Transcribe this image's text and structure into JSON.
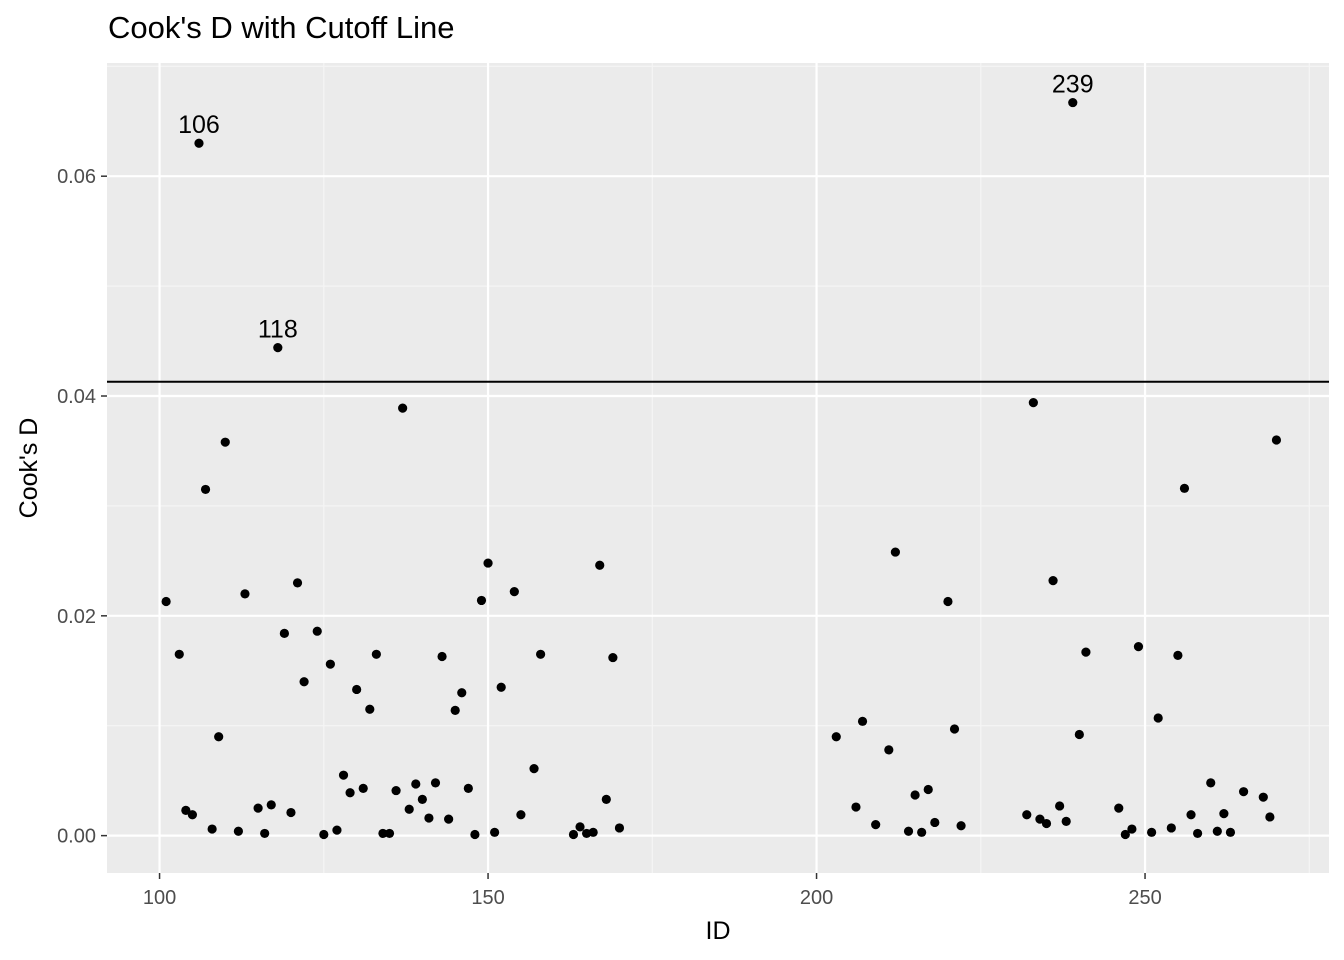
{
  "chart_data": {
    "type": "scatter",
    "title": "Cook's D with Cutoff Line",
    "xlabel": "ID",
    "ylabel": "Cook's D",
    "xlim": [
      92,
      278
    ],
    "ylim": [
      -0.0034,
      0.0703
    ],
    "x_ticks": [
      100,
      150,
      200,
      250
    ],
    "y_ticks": [
      0.0,
      0.02,
      0.04,
      0.06
    ],
    "x_tick_labels": [
      "100",
      "150",
      "200",
      "250"
    ],
    "y_tick_labels": [
      "0.00",
      "0.02",
      "0.04",
      "0.06"
    ],
    "grid": true,
    "cutoff": 0.0413,
    "colors": {
      "panel": "#ebebeb",
      "grid_major": "#ffffff",
      "grid_minor": "#f5f5f5",
      "point": "#000000",
      "line": "#000000"
    },
    "points": [
      [
        101,
        0.0213
      ],
      [
        103,
        0.0165
      ],
      [
        104,
        0.0023
      ],
      [
        105,
        0.0019
      ],
      [
        106,
        0.063
      ],
      [
        107,
        0.0315
      ],
      [
        108,
        0.0006
      ],
      [
        109,
        0.009
      ],
      [
        110,
        0.0358
      ],
      [
        112,
        0.0004
      ],
      [
        113,
        0.022
      ],
      [
        115,
        0.0025
      ],
      [
        116,
        0.0002
      ],
      [
        117,
        0.0028
      ],
      [
        118,
        0.0444
      ],
      [
        119,
        0.0184
      ],
      [
        120,
        0.0021
      ],
      [
        121,
        0.023
      ],
      [
        122,
        0.014
      ],
      [
        124,
        0.0186
      ],
      [
        125,
        0.0001
      ],
      [
        126,
        0.0156
      ],
      [
        127,
        0.0005
      ],
      [
        128,
        0.0055
      ],
      [
        129,
        0.0039
      ],
      [
        130,
        0.0133
      ],
      [
        131,
        0.0043
      ],
      [
        132,
        0.0115
      ],
      [
        133,
        0.0165
      ],
      [
        134,
        0.0002
      ],
      [
        135,
        0.0002
      ],
      [
        136,
        0.0041
      ],
      [
        137,
        0.0389
      ],
      [
        138,
        0.0024
      ],
      [
        139,
        0.0047
      ],
      [
        140,
        0.0033
      ],
      [
        141,
        0.0016
      ],
      [
        142,
        0.0048
      ],
      [
        143,
        0.0163
      ],
      [
        144,
        0.0015
      ],
      [
        145,
        0.0114
      ],
      [
        146,
        0.013
      ],
      [
        147,
        0.0043
      ],
      [
        148,
        0.0001
      ],
      [
        149,
        0.0214
      ],
      [
        150,
        0.0248
      ],
      [
        151,
        0.0003
      ],
      [
        152,
        0.0135
      ],
      [
        154,
        0.0222
      ],
      [
        155,
        0.0019
      ],
      [
        157,
        0.0061
      ],
      [
        158,
        0.0165
      ],
      [
        163,
        0.0001
      ],
      [
        164,
        0.0008
      ],
      [
        165,
        0.0002
      ],
      [
        166,
        0.0003
      ],
      [
        167,
        0.0246
      ],
      [
        168,
        0.0033
      ],
      [
        169,
        0.0162
      ],
      [
        170,
        0.0007
      ],
      [
        203,
        0.009
      ],
      [
        206,
        0.0026
      ],
      [
        207,
        0.0104
      ],
      [
        209,
        0.001
      ],
      [
        211,
        0.0078
      ],
      [
        212,
        0.0258
      ],
      [
        214,
        0.0004
      ],
      [
        215,
        0.0037
      ],
      [
        216,
        0.0003
      ],
      [
        217,
        0.0042
      ],
      [
        218,
        0.0012
      ],
      [
        220,
        0.0213
      ],
      [
        221,
        0.0097
      ],
      [
        222,
        0.0009
      ],
      [
        232,
        0.0019
      ],
      [
        233,
        0.0394
      ],
      [
        234,
        0.0015
      ],
      [
        235,
        0.0011
      ],
      [
        236,
        0.0232
      ],
      [
        237,
        0.0027
      ],
      [
        238,
        0.0013
      ],
      [
        239,
        0.0667
      ],
      [
        240,
        0.0092
      ],
      [
        241,
        0.0167
      ],
      [
        246,
        0.0025
      ],
      [
        247,
        0.0001
      ],
      [
        248,
        0.0006
      ],
      [
        249,
        0.0172
      ],
      [
        251,
        0.0003
      ],
      [
        252,
        0.0107
      ],
      [
        254,
        0.0007
      ],
      [
        255,
        0.0164
      ],
      [
        256,
        0.0316
      ],
      [
        257,
        0.0019
      ],
      [
        258,
        0.0002
      ],
      [
        260,
        0.0048
      ],
      [
        261,
        0.0004
      ],
      [
        262,
        0.002
      ],
      [
        263,
        0.0003
      ],
      [
        265,
        0.004
      ],
      [
        268,
        0.0035
      ],
      [
        269,
        0.0017
      ],
      [
        270,
        0.036
      ]
    ],
    "labeled_points": [
      {
        "label": "106",
        "x": 106,
        "y": 0.063
      },
      {
        "label": "118",
        "x": 118,
        "y": 0.0444
      },
      {
        "label": "239",
        "x": 239,
        "y": 0.0667
      }
    ]
  }
}
